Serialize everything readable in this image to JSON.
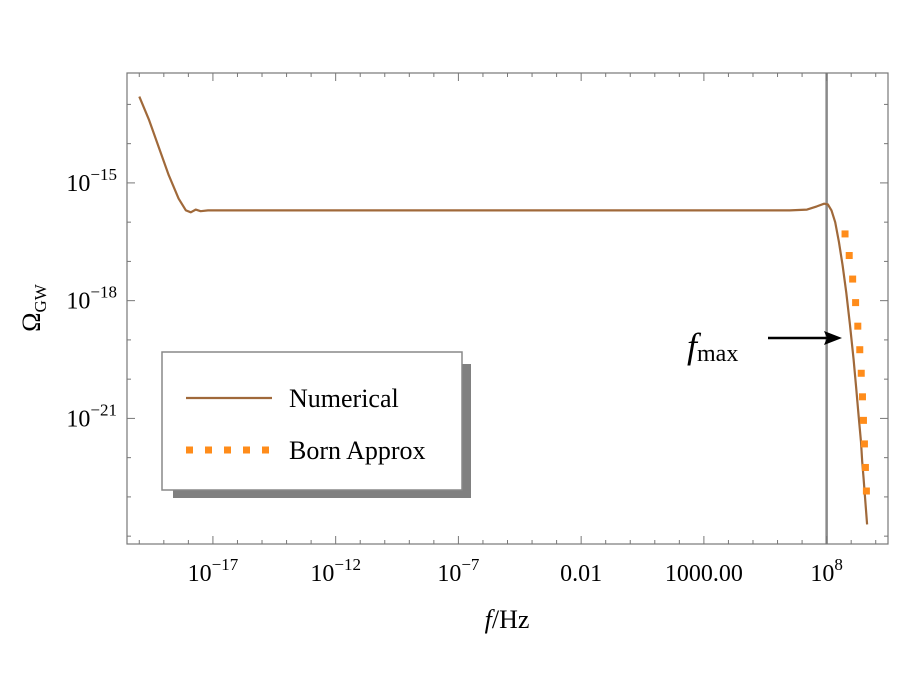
{
  "chart_data": {
    "type": "line",
    "xlabel_italic": "f",
    "xlabel_rest": "/Hz",
    "ylabel_main": "Ω",
    "ylabel_sub": "GW",
    "x_scale": "log",
    "y_scale": "log",
    "xlim_log10": [
      -20.5,
      10.5
    ],
    "ylim_log10": [
      -24.2,
      -12.2
    ],
    "x_ticks": [
      {
        "log10": -17,
        "base": "10",
        "exp": "−17"
      },
      {
        "log10": -12,
        "base": "10",
        "exp": "−12"
      },
      {
        "log10": -7,
        "base": "10",
        "exp": "−7"
      },
      {
        "log10": -2,
        "base": "0.01",
        "exp": ""
      },
      {
        "log10": 3,
        "base": "1000.00",
        "exp": ""
      },
      {
        "log10": 8,
        "base": "10",
        "exp": "8"
      }
    ],
    "y_ticks": [
      {
        "log10": -15,
        "base": "10",
        "exp": "−15"
      },
      {
        "log10": -18,
        "base": "10",
        "exp": "−18"
      },
      {
        "log10": -21,
        "base": "10",
        "exp": "−21"
      }
    ],
    "grid": false,
    "legend": {
      "placement": "lower-left",
      "entries": [
        {
          "label": "Numerical",
          "style": "solid",
          "color": "#a0693a"
        },
        {
          "label": "Born Approx",
          "style": "dotted",
          "color": "#ff8c1a"
        }
      ]
    },
    "vline": {
      "x_log10": 8.0
    },
    "annotation": {
      "text_italic": "f",
      "text_sub": "max"
    },
    "series": [
      {
        "name": "Numerical",
        "color": "#a0693a",
        "x_log10": [
          -20.0,
          -19.6,
          -19.2,
          -18.8,
          -18.4,
          -18.1,
          -17.9,
          -17.7,
          -17.5,
          -17.2,
          -16.8,
          -15.0,
          -10.0,
          -5.0,
          0.0,
          5.0,
          6.5,
          7.2,
          7.6,
          7.9,
          8.05,
          8.2,
          8.35,
          8.5,
          8.65,
          8.8,
          8.95,
          9.1,
          9.2,
          9.3,
          9.4,
          9.45,
          9.5,
          9.55,
          9.6,
          9.65
        ],
        "y_log10": [
          -12.8,
          -13.4,
          -14.1,
          -14.8,
          -15.4,
          -15.7,
          -15.75,
          -15.68,
          -15.72,
          -15.7,
          -15.7,
          -15.7,
          -15.7,
          -15.7,
          -15.7,
          -15.7,
          -15.7,
          -15.68,
          -15.6,
          -15.53,
          -15.55,
          -15.7,
          -16.0,
          -16.5,
          -17.1,
          -17.8,
          -18.6,
          -19.5,
          -20.2,
          -20.9,
          -21.6,
          -22.1,
          -22.5,
          -22.9,
          -23.3,
          -23.7
        ]
      },
      {
        "name": "Born Approx",
        "color": "#ff8c1a",
        "x_log10": [
          8.75,
          8.92,
          9.06,
          9.18,
          9.27,
          9.35,
          9.41,
          9.46,
          9.5,
          9.54,
          9.58,
          9.62
        ],
        "y_log10": [
          -16.3,
          -16.85,
          -17.45,
          -18.05,
          -18.65,
          -19.25,
          -19.85,
          -20.45,
          -21.05,
          -21.65,
          -22.25,
          -22.85
        ]
      }
    ]
  }
}
